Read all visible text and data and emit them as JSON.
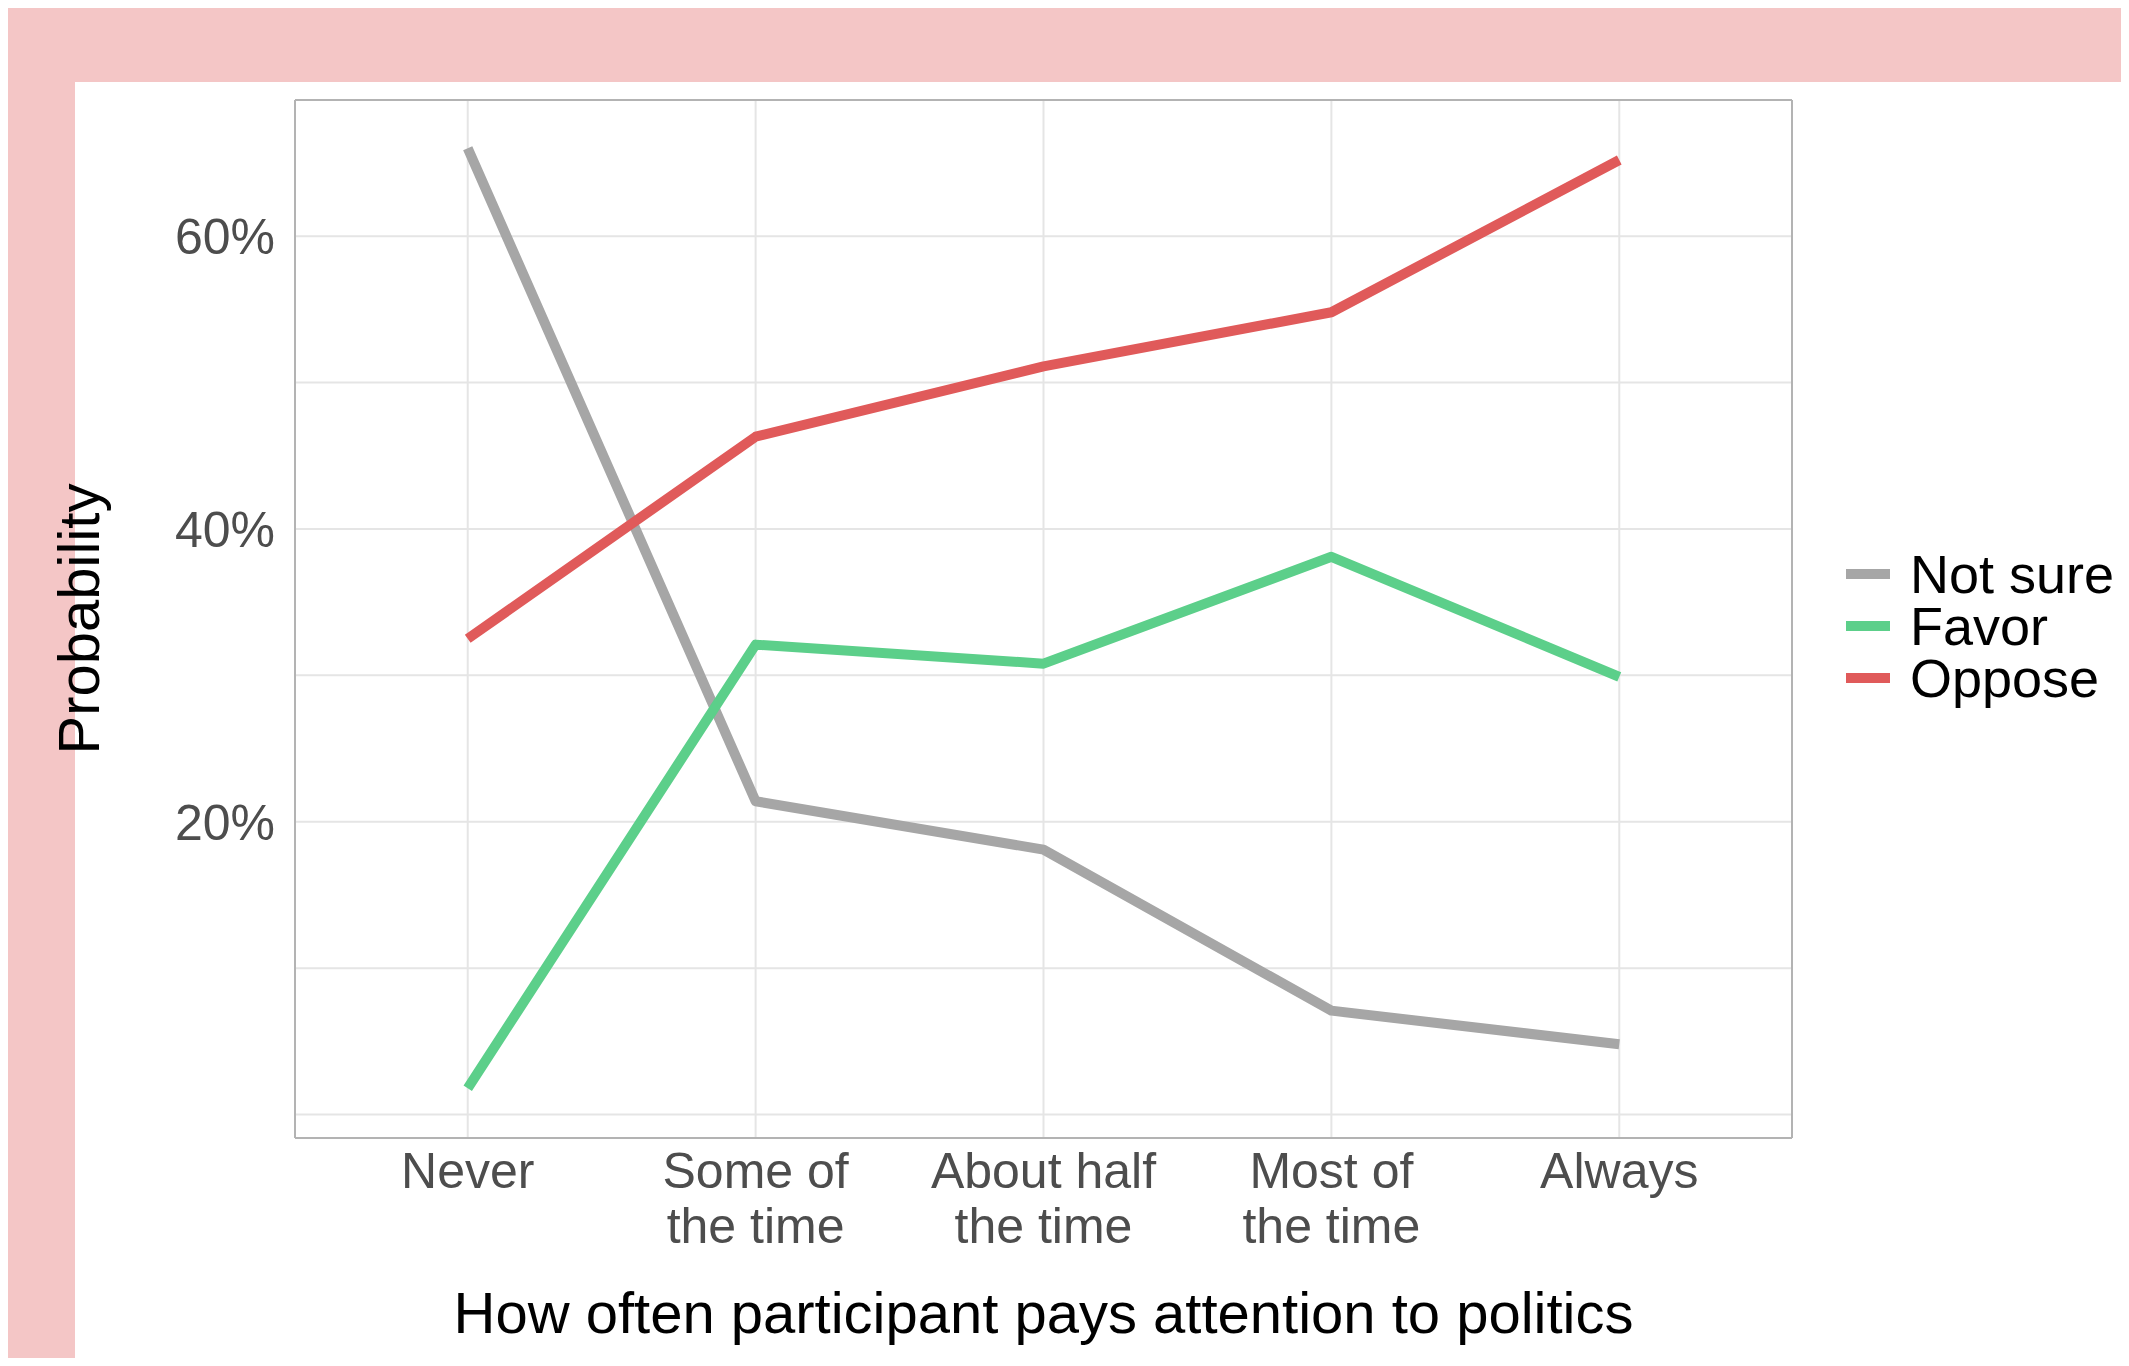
{
  "chart_data": {
    "type": "line",
    "xlabel": "How often participant pays attention to politics",
    "ylabel": "Probability",
    "categories": [
      "Never",
      "Some of the time",
      "About half the time",
      "Most of the time",
      "Always"
    ],
    "series": [
      {
        "name": "Not sure",
        "color": "#a6a6a6",
        "values": [
          66.0,
          21.4,
          18.1,
          7.1,
          4.8
        ]
      },
      {
        "name": "Favor",
        "color": "#5ccf8a",
        "values": [
          1.8,
          32.1,
          30.8,
          38.1,
          29.9
        ]
      },
      {
        "name": "Oppose",
        "color": "#e05a5a",
        "values": [
          32.5,
          46.3,
          51.1,
          54.8,
          65.2
        ]
      }
    ],
    "ylim": [
      -1.6,
      69.3
    ],
    "yticks": [
      {
        "value": 0,
        "label": null
      },
      {
        "value": 10,
        "label": null
      },
      {
        "value": 20,
        "label": "20%"
      },
      {
        "value": 30,
        "label": null
      },
      {
        "value": 40,
        "label": "40%"
      },
      {
        "value": 50,
        "label": null
      },
      {
        "value": 60,
        "label": "60%"
      }
    ],
    "grid": true,
    "legend": "right",
    "marker": "none",
    "line_style": "solid"
  }
}
